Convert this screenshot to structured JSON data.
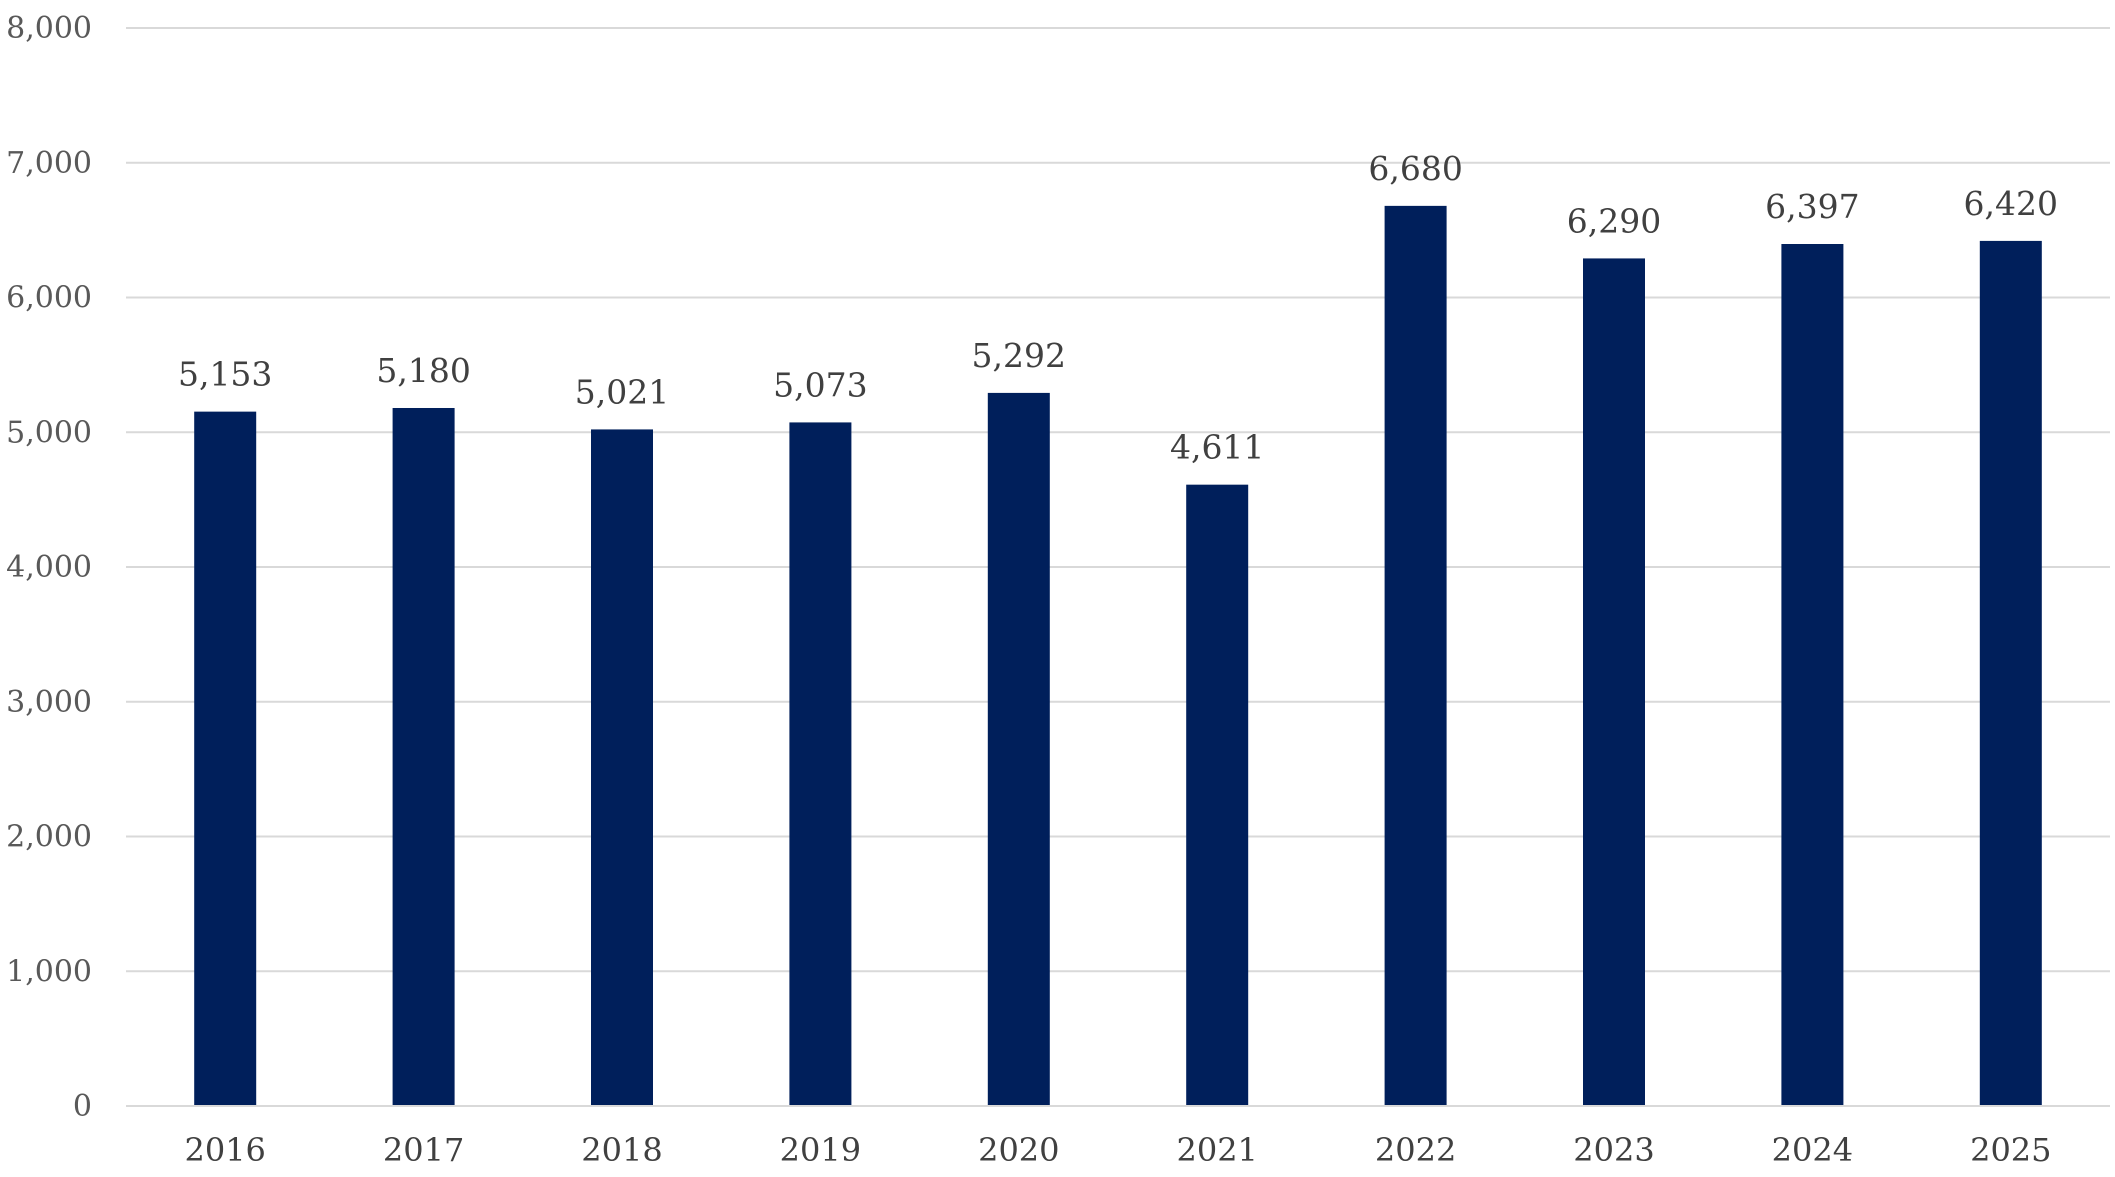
{
  "chart_data": {
    "type": "bar",
    "title": "",
    "xlabel": "",
    "ylabel": "",
    "categories": [
      "2016",
      "2017",
      "2018",
      "2019",
      "2020",
      "2021",
      "2022",
      "2023",
      "2024",
      "2025"
    ],
    "values": [
      5153,
      5180,
      5021,
      5073,
      5292,
      4611,
      6680,
      6290,
      6397,
      6420
    ],
    "data_labels": [
      "5,153",
      "5,180",
      "5,021",
      "5,073",
      "5,292",
      "4,611",
      "6,680",
      "6,290",
      "6,397",
      "6,420"
    ],
    "ylim": [
      0,
      8000
    ],
    "yticks": [
      0,
      1000,
      2000,
      3000,
      4000,
      5000,
      6000,
      7000,
      8000
    ],
    "ytick_labels": [
      "0",
      "1,000",
      "2,000",
      "3,000",
      "4,000",
      "5,000",
      "6,000",
      "7,000",
      "8,000"
    ],
    "grid": true,
    "legend": "none",
    "bar_color": "#001f5b",
    "grid_color": "#d9d9d9",
    "text_color": "#404040"
  }
}
